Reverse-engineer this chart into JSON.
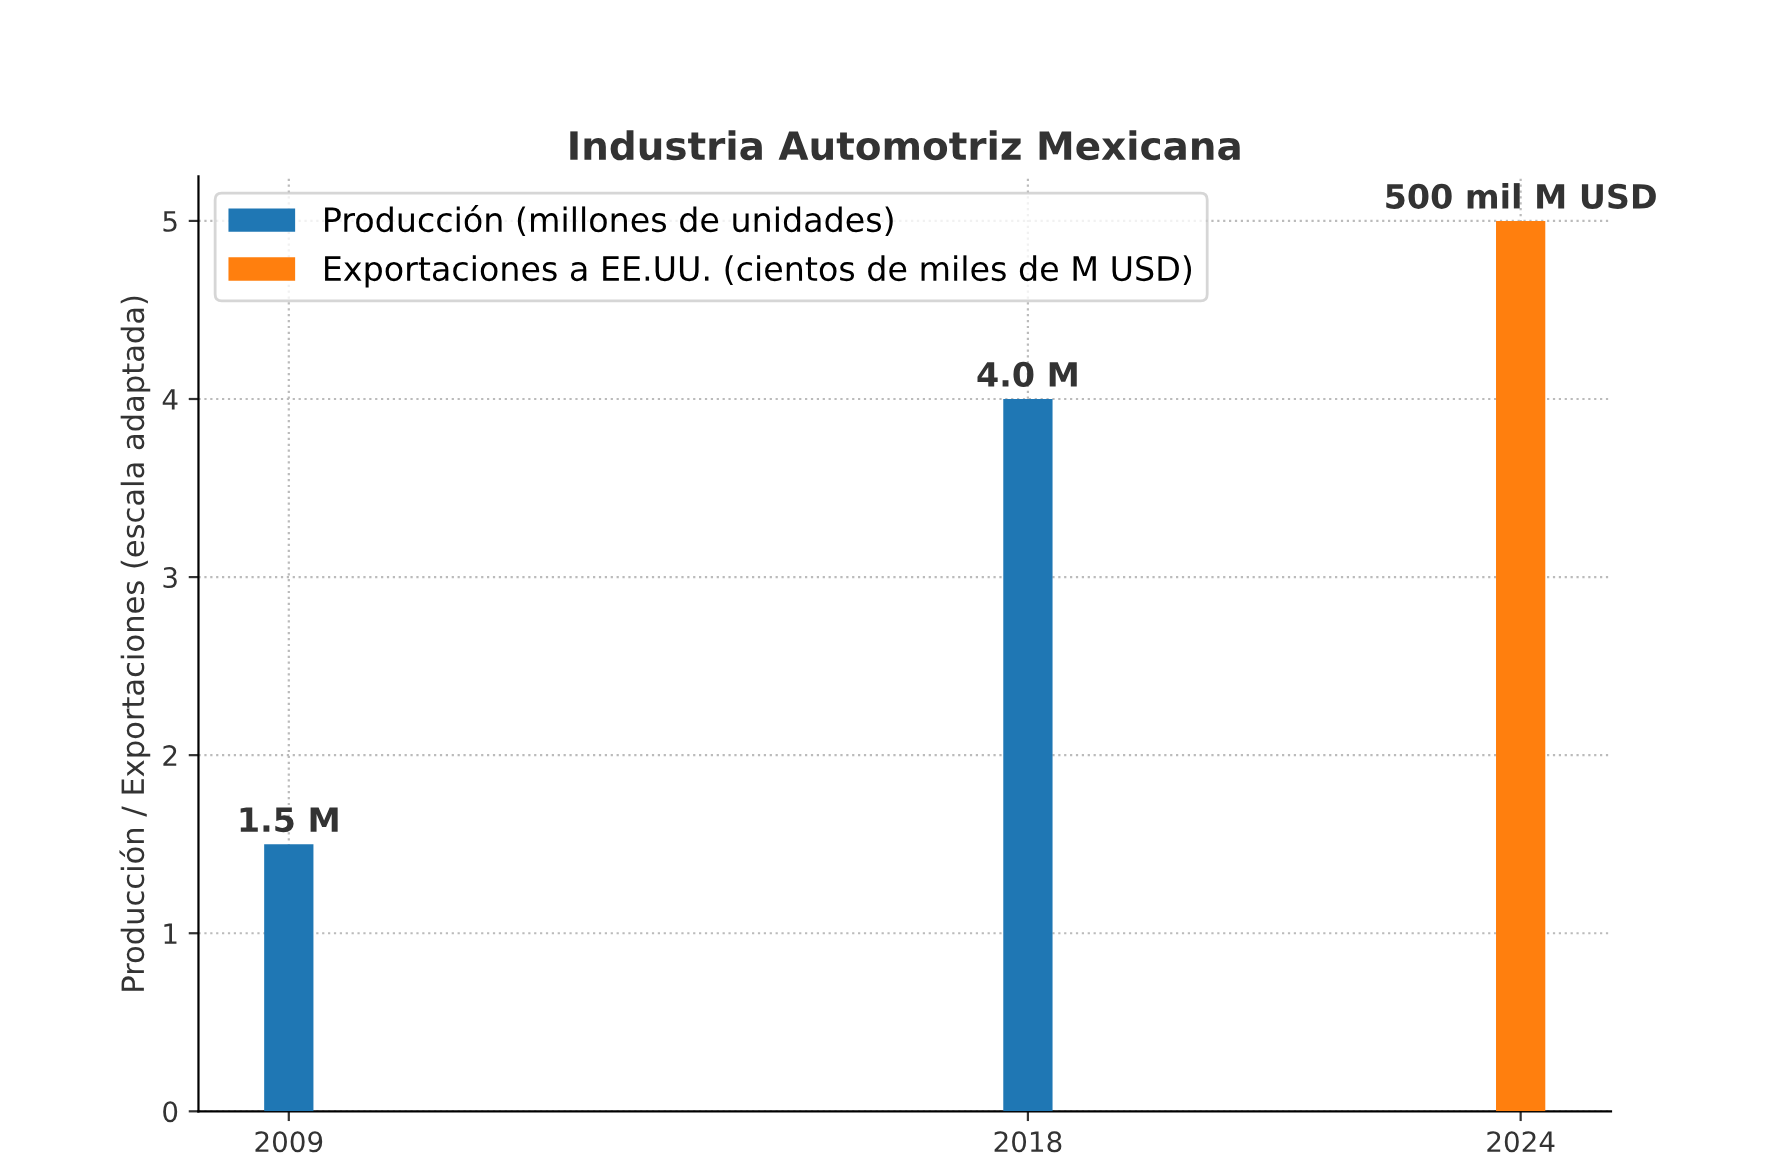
{
  "chart_data": {
    "type": "bar",
    "title": "Industria Automotriz Mexicana",
    "ylabel": "Producción / Exportaciones (escala adaptada)",
    "series": [
      {
        "name": "Producción (millones de unidades)",
        "color": "#1f77b4",
        "x": [
          2009,
          2018
        ],
        "values": [
          1.5,
          4.0
        ],
        "value_labels": [
          "1.5 M",
          "4.0 M"
        ]
      },
      {
        "name": "Exportaciones a EE.UU. (cientos de miles de M USD)",
        "color": "#ff7f0e",
        "x": [
          2024
        ],
        "values": [
          5.0
        ]
      }
    ],
    "annotations": [
      {
        "text": "500 mil M USD",
        "x": 2024,
        "y": 5.0
      }
    ],
    "xlim": [
      2007.9,
      2025.1
    ],
    "xticks": [
      2009,
      2018,
      2024
    ],
    "ylim": [
      0,
      5.25
    ],
    "yticks": [
      0,
      1,
      2,
      3,
      4,
      5
    ],
    "grid": true,
    "legend": "top left"
  }
}
